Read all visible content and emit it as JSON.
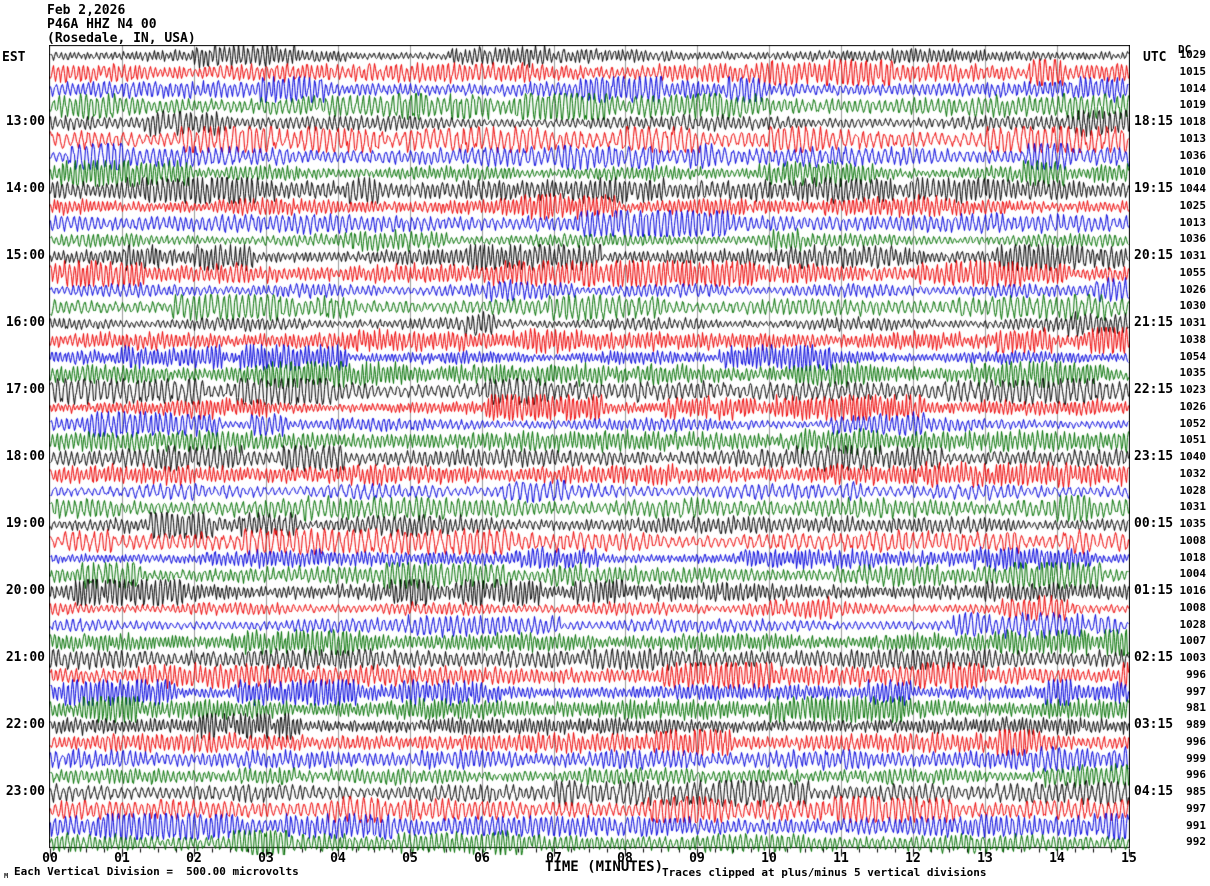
{
  "header": {
    "date": "Feb 2,2026",
    "station": "P46A HHZ N4 00",
    "location": "(Rosedale, IN, USA)"
  },
  "axes": {
    "left_timezone": "EST",
    "right_timezone": "UTC",
    "dc_label": "DC",
    "x_title": "TIME (MINUTES)",
    "x_ticks": [
      "00",
      "01",
      "02",
      "03",
      "04",
      "05",
      "06",
      "07",
      "08",
      "09",
      "10",
      "11",
      "12",
      "13",
      "14",
      "15"
    ]
  },
  "footer": {
    "left": "Each Vertical Division =  500.00 microvolts",
    "right": "Traces clipped at plus/minus 5 vertical divisions",
    "corner_mark": "M"
  },
  "chart_data": {
    "type": "line",
    "subtype": "helicorder-seismogram",
    "title": "P46A HHZ N4 00 (Rosedale, IN, USA) Feb 2,2026",
    "xlabel": "TIME (MINUTES)",
    "x_range": [
      0,
      15
    ],
    "minutes_per_row": 15,
    "grid": true,
    "grid_color": "#999999",
    "trace_color_cycle": [
      "#000000",
      "#ee0000",
      "#0000dd",
      "#007000"
    ],
    "vertical_division_microvolts": 500.0,
    "clip_divisions": 5,
    "rows": [
      {
        "est": "",
        "utc": "",
        "dc": 1029
      },
      {
        "est": "",
        "utc": "",
        "dc": 1015
      },
      {
        "est": "",
        "utc": "",
        "dc": 1014
      },
      {
        "est": "",
        "utc": "",
        "dc": 1019
      },
      {
        "est": "13:00",
        "utc": "18:15",
        "dc": 1018
      },
      {
        "est": "",
        "utc": "",
        "dc": 1013
      },
      {
        "est": "",
        "utc": "",
        "dc": 1036
      },
      {
        "est": "",
        "utc": "",
        "dc": 1010
      },
      {
        "est": "14:00",
        "utc": "19:15",
        "dc": 1044
      },
      {
        "est": "",
        "utc": "",
        "dc": 1025
      },
      {
        "est": "",
        "utc": "",
        "dc": 1013
      },
      {
        "est": "",
        "utc": "",
        "dc": 1036
      },
      {
        "est": "15:00",
        "utc": "20:15",
        "dc": 1031
      },
      {
        "est": "",
        "utc": "",
        "dc": 1055
      },
      {
        "est": "",
        "utc": "",
        "dc": 1026
      },
      {
        "est": "",
        "utc": "",
        "dc": 1030
      },
      {
        "est": "16:00",
        "utc": "21:15",
        "dc": 1031
      },
      {
        "est": "",
        "utc": "",
        "dc": 1038
      },
      {
        "est": "",
        "utc": "",
        "dc": 1054
      },
      {
        "est": "",
        "utc": "",
        "dc": 1035
      },
      {
        "est": "17:00",
        "utc": "22:15",
        "dc": 1023
      },
      {
        "est": "",
        "utc": "",
        "dc": 1026
      },
      {
        "est": "",
        "utc": "",
        "dc": 1052
      },
      {
        "est": "",
        "utc": "",
        "dc": 1051
      },
      {
        "est": "18:00",
        "utc": "23:15",
        "dc": 1040
      },
      {
        "est": "",
        "utc": "",
        "dc": 1032
      },
      {
        "est": "",
        "utc": "",
        "dc": 1028
      },
      {
        "est": "",
        "utc": "",
        "dc": 1031
      },
      {
        "est": "19:00",
        "utc": "00:15",
        "dc": 1035
      },
      {
        "est": "",
        "utc": "",
        "dc": 1008
      },
      {
        "est": "",
        "utc": "",
        "dc": 1018
      },
      {
        "est": "",
        "utc": "",
        "dc": 1004
      },
      {
        "est": "20:00",
        "utc": "01:15",
        "dc": 1016
      },
      {
        "est": "",
        "utc": "",
        "dc": 1008
      },
      {
        "est": "",
        "utc": "",
        "dc": 1028
      },
      {
        "est": "",
        "utc": "",
        "dc": 1007
      },
      {
        "est": "21:00",
        "utc": "02:15",
        "dc": 1003
      },
      {
        "est": "",
        "utc": "",
        "dc": 996
      },
      {
        "est": "",
        "utc": "",
        "dc": 997
      },
      {
        "est": "",
        "utc": "",
        "dc": 981
      },
      {
        "est": "22:00",
        "utc": "03:15",
        "dc": 989
      },
      {
        "est": "",
        "utc": "",
        "dc": 996
      },
      {
        "est": "",
        "utc": "",
        "dc": 999
      },
      {
        "est": "",
        "utc": "",
        "dc": 996
      },
      {
        "est": "23:00",
        "utc": "04:15",
        "dc": 985
      },
      {
        "est": "",
        "utc": "",
        "dc": 997
      },
      {
        "est": "",
        "utc": "",
        "dc": 991
      },
      {
        "est": "",
        "utc": "",
        "dc": 992
      }
    ]
  }
}
